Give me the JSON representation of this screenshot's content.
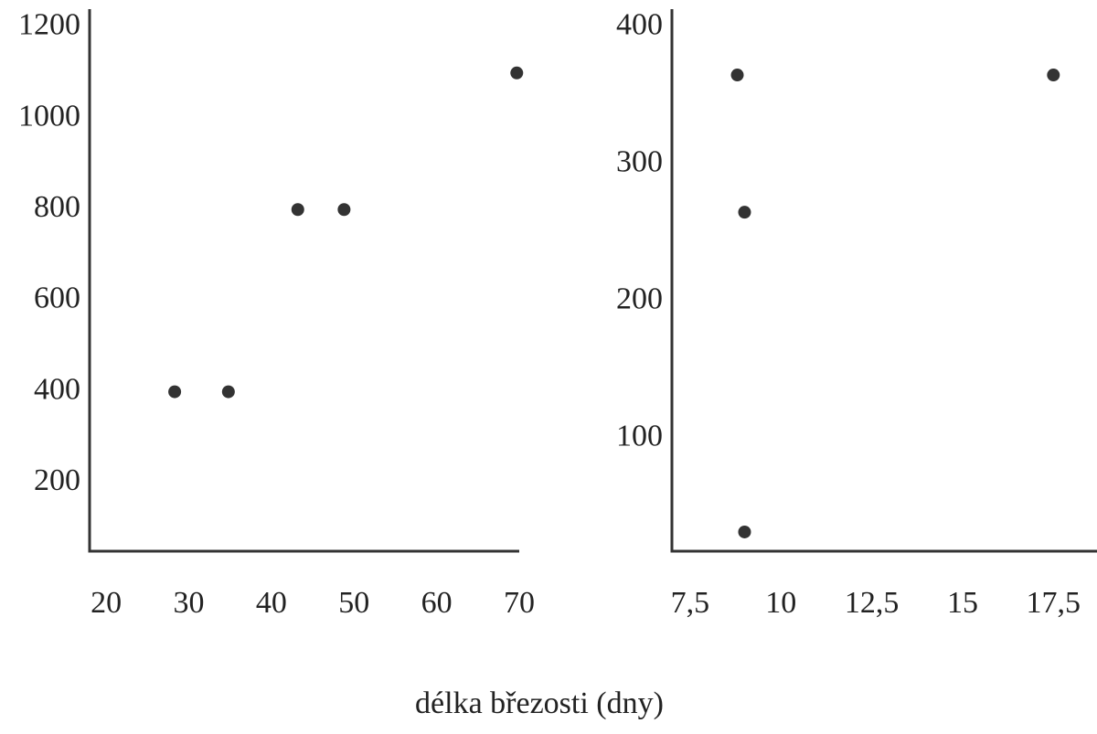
{
  "chart_data": [
    {
      "type": "scatter",
      "x": [
        28.3,
        34.8,
        43.2,
        48.8,
        69.7
      ],
      "y": [
        400,
        400,
        800,
        800,
        1100
      ],
      "xlim": [
        18,
        70
      ],
      "ylim": [
        50,
        1240
      ],
      "xticks": [
        20,
        30,
        40,
        50,
        60,
        70
      ],
      "yticks": [
        200,
        400,
        600,
        800,
        1000,
        1200
      ],
      "color": "#333333"
    },
    {
      "type": "scatter",
      "x": [
        8.8,
        9.0,
        9.0,
        17.5
      ],
      "y": [
        365,
        265,
        32,
        365
      ],
      "xlim": [
        7,
        18.7
      ],
      "ylim": [
        18,
        413
      ],
      "xticks": [
        {
          "value": 7.5,
          "label": "7,5"
        },
        10,
        {
          "value": 12.5,
          "label": "12,5"
        },
        15,
        {
          "value": 17.5,
          "label": "17,5"
        }
      ],
      "yticks": [
        100,
        200,
        300,
        400
      ],
      "color": "#333333"
    }
  ],
  "x_label": "délka březosti (dny)"
}
